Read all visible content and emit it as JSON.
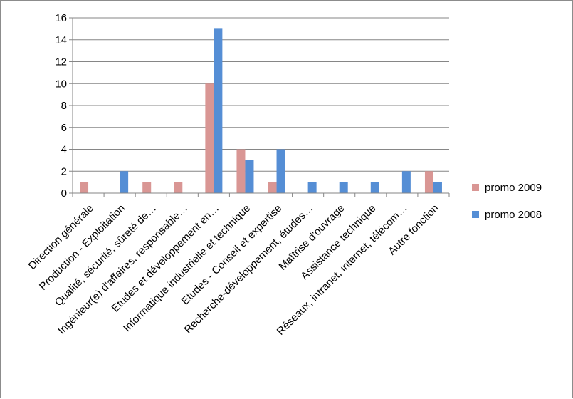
{
  "chart_data": {
    "type": "bar",
    "categories": [
      "Direction générale",
      "Production - Exploitation",
      "Qualité, sécurité, sûreté de…",
      "Ingénieur(e) d'affaires, responsable…",
      "Etudes et développement en…",
      "Informatique industrielle et technique",
      "Etudes - Conseil et expertise",
      "Recherche-développement, études…",
      "Maîtrise d'ouvrage",
      "Assistance technique",
      "Réseaux, intranet, internet, télécom…",
      "Autre fonction"
    ],
    "series": [
      {
        "name": "promo 2009",
        "color": "#d99694",
        "values": [
          1,
          0,
          1,
          1,
          10,
          4,
          1,
          0,
          0,
          0,
          0,
          2
        ]
      },
      {
        "name": "promo 2008",
        "color": "#558ed5",
        "values": [
          0,
          2,
          0,
          0,
          15,
          3,
          4,
          1,
          1,
          1,
          2,
          1
        ]
      }
    ],
    "yticks": [
      "0",
      "2",
      "4",
      "6",
      "8",
      "10",
      "12",
      "14",
      "16"
    ],
    "ylim": [
      0,
      16
    ],
    "grid": true,
    "legend_position": "right"
  }
}
